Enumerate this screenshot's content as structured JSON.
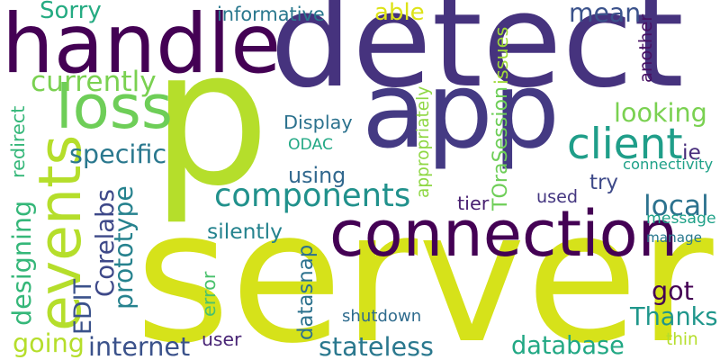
{
  "words": [
    {
      "text": "p",
      "color": "#b5de2b"
    },
    {
      "text": "server",
      "color": "#d6e21a"
    },
    {
      "text": "detect",
      "color": "#46337e"
    },
    {
      "text": "app",
      "color": "#443a83"
    },
    {
      "text": "handle",
      "color": "#440154"
    },
    {
      "text": "connection",
      "color": "#440154"
    },
    {
      "text": "loss",
      "color": "#6ece58"
    },
    {
      "text": "events",
      "color": "#b5de2b"
    },
    {
      "text": "components",
      "color": "#21918c"
    },
    {
      "text": "client",
      "color": "#1f9e89"
    },
    {
      "text": "Sorry",
      "color": "#25ab82"
    },
    {
      "text": "informative",
      "color": "#2a788e"
    },
    {
      "text": "able",
      "color": "#dde318"
    },
    {
      "text": "mean",
      "color": "#3b528b"
    },
    {
      "text": "currently",
      "color": "#7ad151"
    },
    {
      "text": "looking",
      "color": "#7ad151"
    },
    {
      "text": "specific",
      "color": "#2a788e"
    },
    {
      "text": "using",
      "color": "#31688e"
    },
    {
      "text": "try",
      "color": "#3e4a89"
    },
    {
      "text": "local",
      "color": "#2c728e"
    },
    {
      "text": "Display",
      "color": "#2c728e"
    },
    {
      "text": "ODAC",
      "color": "#22a884"
    },
    {
      "text": "redirect",
      "color": "#35b779"
    },
    {
      "text": "issues",
      "color": "#a0da39"
    },
    {
      "text": "another",
      "color": "#471164"
    },
    {
      "text": "TOraSession",
      "color": "#6ece58"
    },
    {
      "text": "appropriately",
      "color": "#8fd744"
    },
    {
      "text": "ie",
      "color": "#472d7b"
    },
    {
      "text": "connectivity",
      "color": "#1fa188"
    },
    {
      "text": "designing",
      "color": "#35b779"
    },
    {
      "text": "Corelabs",
      "color": "#3e4989"
    },
    {
      "text": "prototype",
      "color": "#26828e"
    },
    {
      "text": "EDIT",
      "color": "#3b528b"
    },
    {
      "text": "datasnap",
      "color": "#2c728e"
    },
    {
      "text": "tier",
      "color": "#481f70"
    },
    {
      "text": "used",
      "color": "#453781"
    },
    {
      "text": "message",
      "color": "#1fa188"
    },
    {
      "text": "manage",
      "color": "#29798e"
    },
    {
      "text": "silently",
      "color": "#25838e"
    },
    {
      "text": "got",
      "color": "#440154"
    },
    {
      "text": "error",
      "color": "#4ac16d"
    },
    {
      "text": "Thanks",
      "color": "#1f968b"
    },
    {
      "text": "shutdown",
      "color": "#2f6c8e"
    },
    {
      "text": "going",
      "color": "#b5de2b"
    },
    {
      "text": "internet",
      "color": "#3b528b"
    },
    {
      "text": "user",
      "color": "#482475"
    },
    {
      "text": "stateless",
      "color": "#2a788e"
    },
    {
      "text": "database",
      "color": "#22a884"
    },
    {
      "text": "thin",
      "color": "#b5de2b"
    }
  ]
}
